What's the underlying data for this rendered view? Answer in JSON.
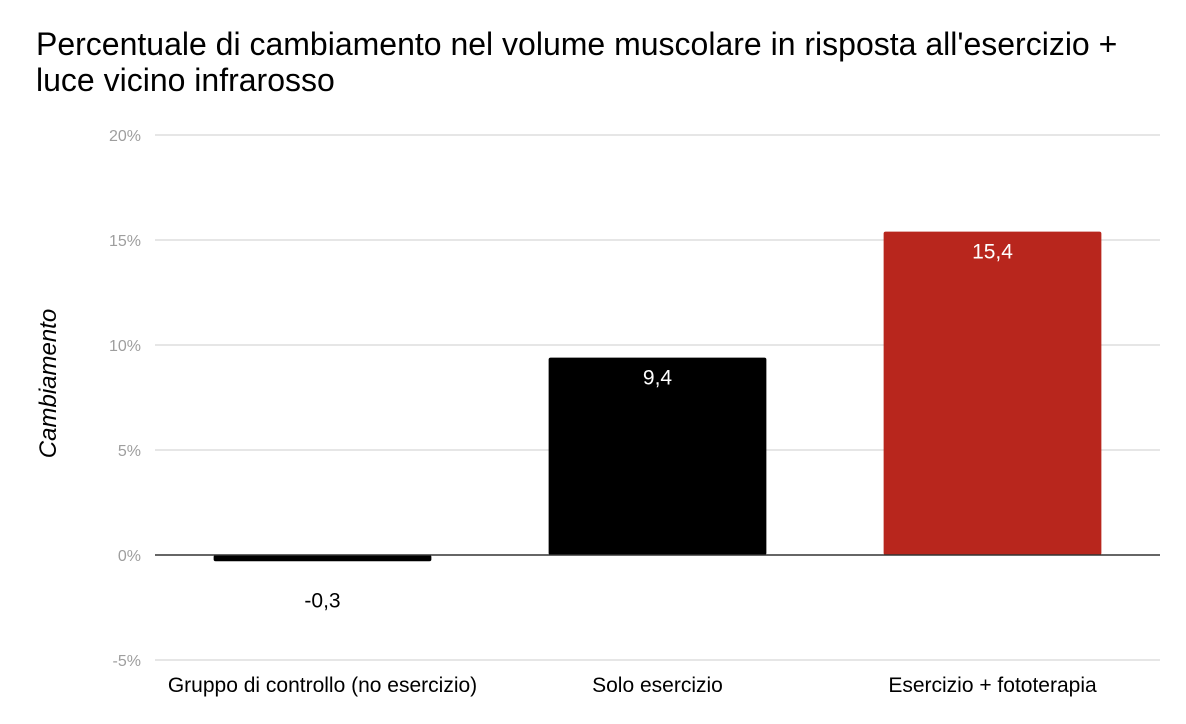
{
  "chart_data": {
    "type": "bar",
    "title": "Percentuale di cambiamento nel volume muscolare in risposta all'esercizio + luce vicino infrarosso",
    "xlabel": "",
    "ylabel": "Cambiamento",
    "ylim": [
      -5,
      20
    ],
    "yticks": [
      -5,
      0,
      5,
      10,
      15,
      20
    ],
    "ytick_labels": [
      "-5%",
      "0%",
      "5%",
      "10%",
      "15%",
      "20%"
    ],
    "categories": [
      "Gruppo di controllo (no esercizio)",
      "Solo esercizio",
      "Esercizio + fototerapia"
    ],
    "values": [
      -0.3,
      9.4,
      15.4
    ],
    "data_labels": [
      "-0,3",
      "9,4",
      "15,4"
    ],
    "bar_colors": [
      "#000000",
      "#000000",
      "#b8261d"
    ],
    "grid": true,
    "legend": "none"
  }
}
